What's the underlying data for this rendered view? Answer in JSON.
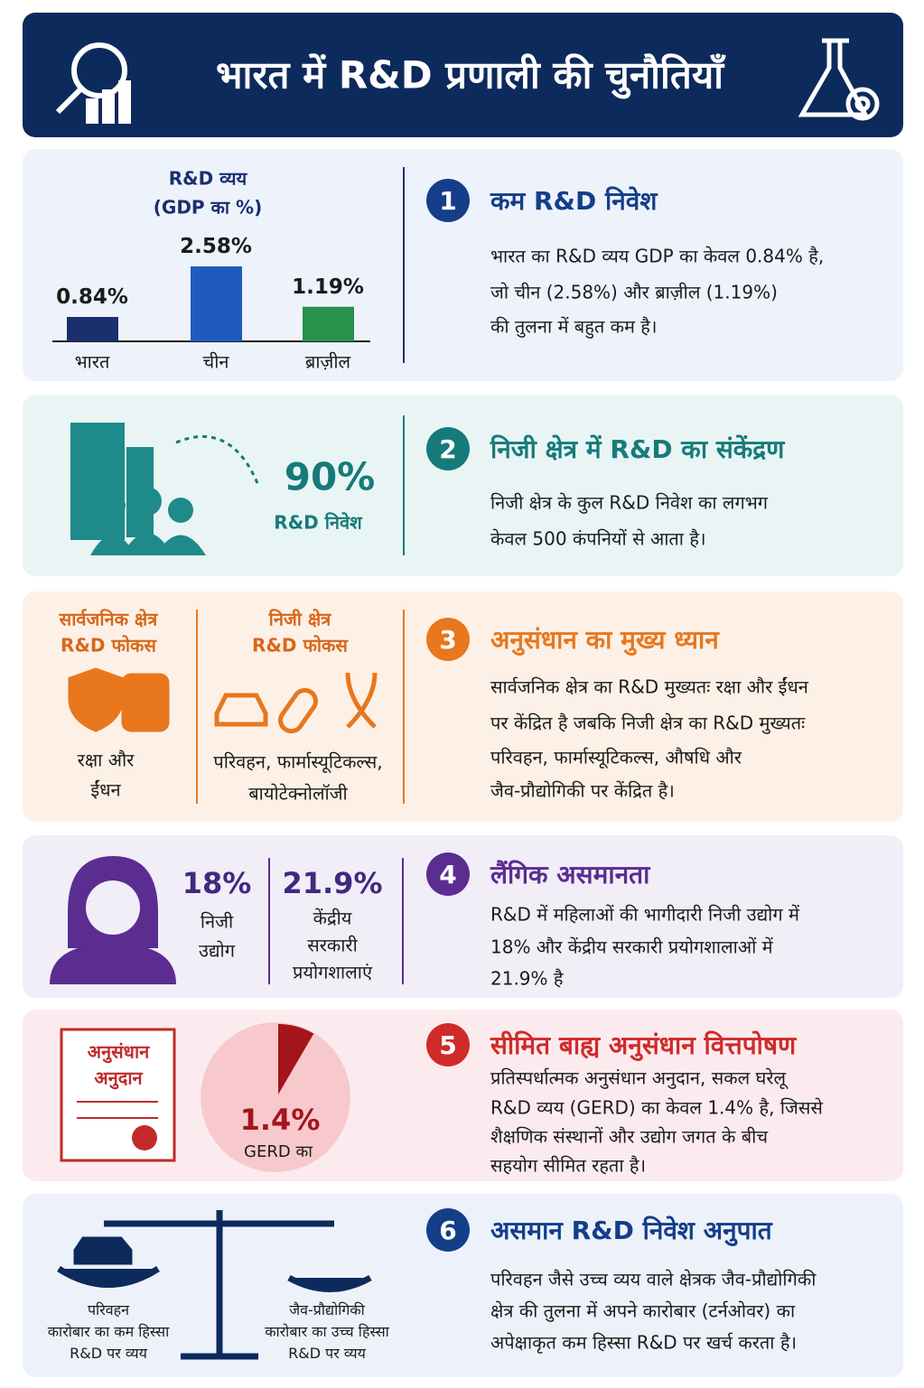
{
  "header": {
    "title": "भारत में R&D प्रणाली की चुनौतियाँ"
  },
  "sections": [
    {
      "number": "1",
      "heading": "कम R&D निवेश",
      "text": [
        "भारत का R&D व्यय GDP का केवल 0.84% है,",
        "जो चीन (2.58%) और ब्राज़ील (1.19%)",
        "की तुलना में बहुत कम है।"
      ],
      "chart": {
        "type": "bar",
        "title": [
          "R&D व्यय",
          "(GDP का %)"
        ],
        "categories": [
          "भारत",
          "चीन",
          "ब्राज़ील"
        ],
        "values": [
          0.84,
          2.58,
          1.19
        ],
        "value_labels": [
          "0.84%",
          "2.58%",
          "1.19%"
        ],
        "colors": [
          "#1a2f6e",
          "#1f5bbf",
          "#26924a"
        ]
      }
    },
    {
      "number": "2",
      "heading": "निजी क्षेत्र में R&D का संकेंद्रण",
      "text": [
        "निजी क्षेत्र के कुल R&D निवेश का लगभग",
        "केवल 500 कंपनियों से आता है।"
      ],
      "stat": "90%",
      "stat_label": "R&D निवेश"
    },
    {
      "number": "3",
      "heading": "अनुसंधान का मुख्य ध्यान",
      "text": [
        "सार्वजनिक क्षेत्र का R&D मुख्यतः रक्षा और ईंधन",
        "पर केंद्रित है जबकि निजी क्षेत्र का R&D मुख्यतः",
        "परिवहन, फार्मास्यूटिकल्स, औषधि और",
        "जैव-प्रौद्योगिकी पर केंद्रित है।"
      ],
      "columns": [
        {
          "title": [
            "सार्वजनिक क्षेत्र",
            "R&D फोकस"
          ],
          "caption": [
            "रक्षा और",
            "ईंधन"
          ]
        },
        {
          "title": [
            "निजी क्षेत्र",
            "R&D फोकस"
          ],
          "caption": [
            "परिवहन, फार्मास्यूटिकल्स,",
            "बायोटेक्नोलॉजी"
          ]
        }
      ]
    },
    {
      "number": "4",
      "heading": "लैंगिक असमानता",
      "text": [
        "R&D में महिलाओं की भागीदारी निजी उद्योग में",
        "18% और केंद्रीय सरकारी प्रयोगशालाओं में",
        "21.9% है"
      ],
      "stats": [
        {
          "value": "18%",
          "label": [
            "निजी",
            "उद्योग"
          ]
        },
        {
          "value": "21.9%",
          "label": [
            "केंद्रीय",
            "सरकारी",
            "प्रयोगशालाएं"
          ]
        }
      ]
    },
    {
      "number": "5",
      "heading": "सीमित बाह्य अनुसंधान वित्तपोषण",
      "text": [
        "प्रतिस्पर्धात्मक अनुसंधान अनुदान, सकल घरेलू",
        "R&D व्यय (GERD) का केवल 1.4% है, जिससे",
        "शैक्षणिक संस्थानों और उद्योग जगत के बीच",
        "सहयोग सीमित रहता है।"
      ],
      "certificate": [
        "अनुसंधान",
        "अनुदान"
      ],
      "pie": {
        "type": "pie",
        "values": [
          1.4
        ],
        "value_labels": [
          "1.4%"
        ],
        "caption": "GERD का",
        "color": "#a3151b"
      }
    },
    {
      "number": "6",
      "heading": "असमान R&D निवेश अनुपात",
      "text": [
        "परिवहन जैसे उच्च व्यय वाले क्षेत्रक जैव-प्रौद्योगिकी",
        "क्षेत्र की तुलना में अपने कारोबार (टर्नओवर) का",
        "अपेक्षाकृत कम हिस्सा R&D पर खर्च करता है।"
      ],
      "left": [
        "परिवहन",
        "कारोबार का कम हिस्सा",
        "R&D पर व्यय"
      ],
      "right": [
        "जैव-प्रौद्योगिकी",
        "कारोबार का उच्च हिस्सा",
        "R&D पर व्यय"
      ]
    }
  ]
}
